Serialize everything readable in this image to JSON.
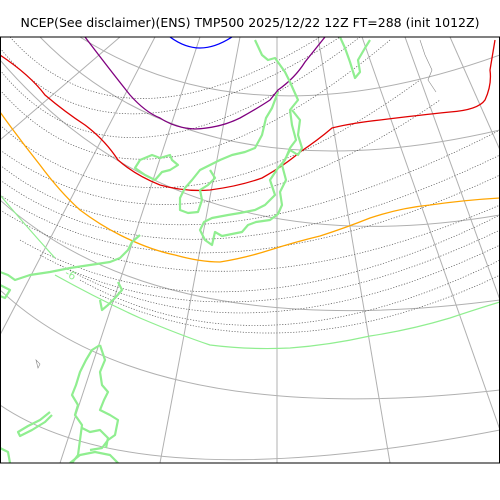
{
  "title": "NCEP(See disclaimer)(ENS) TMP500 2025/12/22 12Z FT=288 (init 1012Z)",
  "contour_label": "-6",
  "colors": {
    "frame": "#000000",
    "graticule": "#b0b0b0",
    "coastline": "#90ee90",
    "isotherm_gray": "#555555",
    "blue_contour": "#0000ff",
    "purple_contour": "#800080",
    "red_contour": "#e00000",
    "orange_contour": "#ffa500",
    "green_contour": "#90ee90"
  },
  "map_elements": [
    "frame",
    "graticule",
    "coastlines",
    "isotherms-dotted",
    "blue-contour",
    "purple-contour",
    "red-contour",
    "orange-contour",
    "green-contour",
    "contour-label"
  ]
}
